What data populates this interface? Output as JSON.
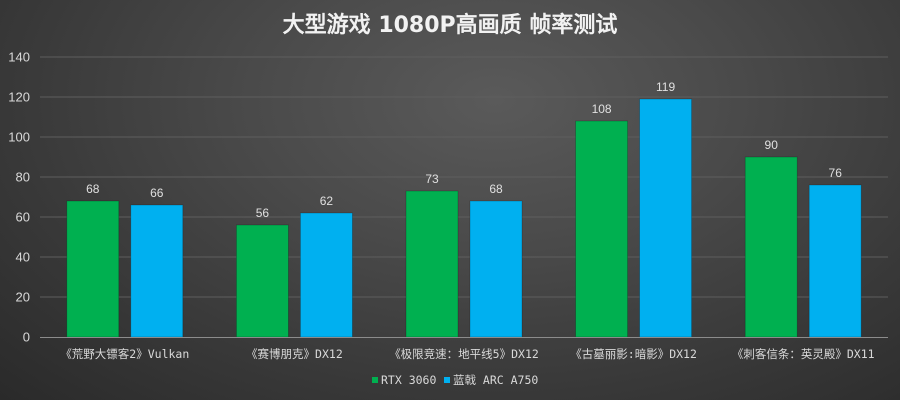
{
  "chart_data": {
    "type": "bar",
    "title": "大型游戏 1080P高画质 帧率测试",
    "xlabel": "",
    "ylabel": "",
    "ylim": [
      0,
      140
    ],
    "yticks": [
      0,
      20,
      40,
      60,
      80,
      100,
      120,
      140
    ],
    "grid": true,
    "legend_position": "bottom",
    "categories": [
      "《荒野大镖客2》Vulkan",
      "《赛博朋克》DX12",
      "《极限竞速：地平线5》DX12",
      "《古墓丽影:暗影》DX12",
      "《刺客信条：英灵殿》DX11"
    ],
    "series": [
      {
        "name": "RTX 3060",
        "color": "#00b050",
        "values": [
          68,
          56,
          73,
          108,
          90
        ]
      },
      {
        "name": "蓝戟 ARC A750",
        "color": "#00b0f0",
        "values": [
          66,
          62,
          68,
          119,
          76
        ]
      }
    ]
  }
}
